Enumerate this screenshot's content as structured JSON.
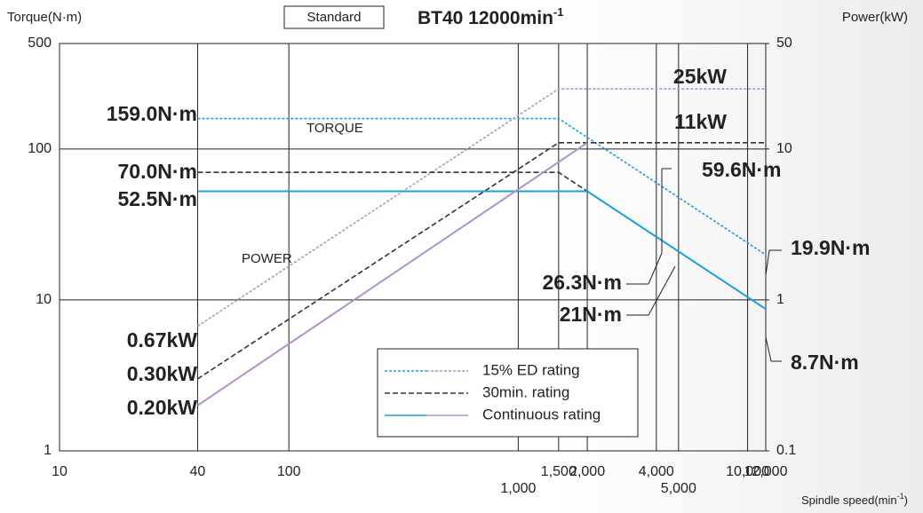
{
  "chart_data": {
    "type": "line",
    "badge": "Standard",
    "title": "BT40 12000min",
    "title_superscript": "-1",
    "y_label": "Torque(N·m)",
    "y2_label": "Power(kW)",
    "x_label": "Spindle speed(min",
    "x_label_superscript": "-1",
    "x_label_end": ")",
    "xscale": "log",
    "yscale": "log",
    "xlim": [
      10,
      12000
    ],
    "xticks": [
      10,
      40,
      100,
      {
        "value": 1000,
        "label": "1,000"
      },
      {
        "value": 1500,
        "label": "1,500"
      },
      {
        "value": 2000,
        "label": "2,000"
      },
      {
        "value": 4000,
        "label": "4,000"
      },
      {
        "value": 5000,
        "label": "5,000"
      },
      {
        "value": 10000,
        "label": "10,000"
      },
      {
        "value": 12000,
        "label": "12,000"
      }
    ],
    "ylim": [
      1,
      500
    ],
    "yticks": [
      1,
      10,
      100,
      500
    ],
    "y2lim": [
      0.1,
      50
    ],
    "y2ticks": [
      0.1,
      1,
      10,
      50
    ],
    "grid": true,
    "series": [
      {
        "name": "15% ED rating",
        "dash": "dotted",
        "torque": {
          "color": "#1ba1dd",
          "x": [
            40,
            1500,
            12000
          ],
          "values": [
            159.0,
            159.0,
            19.9
          ]
        },
        "power": {
          "color": "#b48fcc",
          "axis": "y2",
          "x": [
            40,
            1500,
            12000
          ],
          "values": [
            0.67,
            25,
            25
          ]
        }
      },
      {
        "name": "30min. rating",
        "dash": "dashed",
        "torque": {
          "color": "#333333",
          "x": [
            40,
            1500,
            2000,
            12000
          ],
          "values": [
            70.0,
            70.0,
            52.5,
            8.7
          ]
        },
        "power": {
          "color": "#333333",
          "axis": "y2",
          "x": [
            40,
            1500,
            12000
          ],
          "values": [
            0.3,
            11,
            11
          ]
        }
      },
      {
        "name": "Continuous rating",
        "dash": "solid",
        "torque": {
          "color": "#1ba1dd",
          "x": [
            40,
            2000,
            12000
          ],
          "values": [
            52.5,
            52.5,
            8.7
          ]
        },
        "power": {
          "color": "#b48fcc",
          "axis": "y2",
          "x": [
            40,
            2000
          ],
          "values": [
            0.2,
            11
          ]
        }
      }
    ],
    "annotations": [
      "159.0N·m",
      "70.0N·m",
      "52.5N·m",
      "59.6N·m",
      "19.9N·m",
      "26.3N·m",
      "21N·m",
      "8.7N·m",
      "25kW",
      "11kW",
      "0.67kW",
      "0.30kW",
      "0.20kW",
      "TORQUE",
      "POWER"
    ]
  }
}
